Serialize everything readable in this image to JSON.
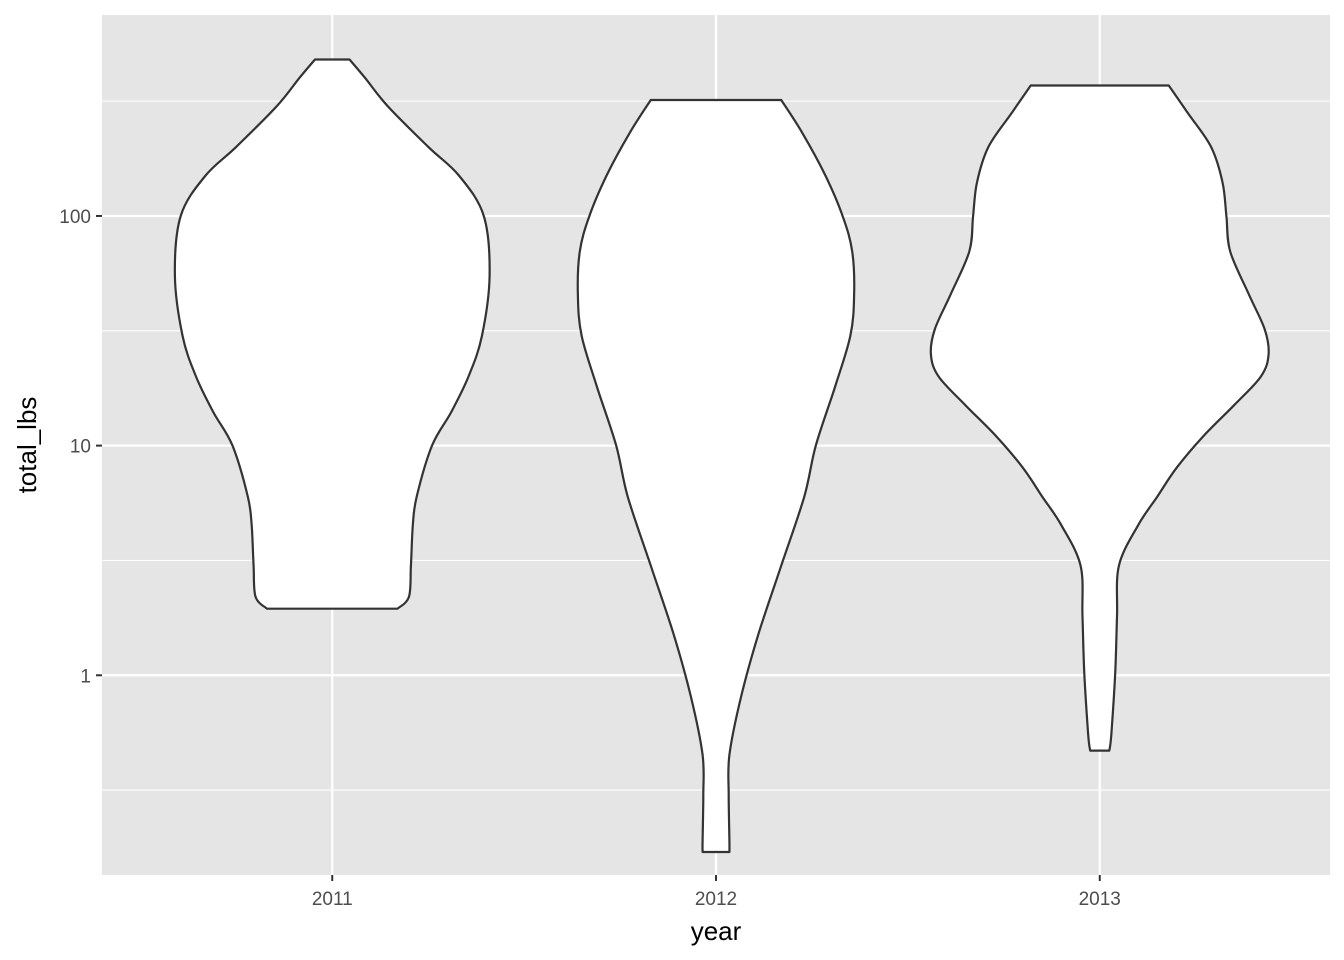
{
  "chart_data": {
    "type": "violin",
    "title": "",
    "xlabel": "year",
    "ylabel": "total_lbs",
    "y_scale": "log10",
    "ylim": [
      0.135,
      750
    ],
    "y_ticks": [
      {
        "value": 1,
        "label": "1"
      },
      {
        "value": 10,
        "label": "10"
      },
      {
        "value": 100,
        "label": "100"
      }
    ],
    "grid": true,
    "legend": "none",
    "colors": {
      "panel_background": "#e5e5e5",
      "grid": "#ffffff",
      "violin_fill": "#ffffff",
      "violin_outline": "#333333",
      "tick_label": "#4d4d4d",
      "axis_title": "#000000"
    },
    "categories": [
      "2011",
      "2012",
      "2013"
    ],
    "series": [
      {
        "category": "2011",
        "min": 1.95,
        "max": 480,
        "density": [
          {
            "y": 1.95,
            "half_width": 0.17
          },
          {
            "y": 2.2,
            "half_width": 0.2
          },
          {
            "y": 3.0,
            "half_width": 0.205
          },
          {
            "y": 4.5,
            "half_width": 0.21
          },
          {
            "y": 6.0,
            "half_width": 0.22
          },
          {
            "y": 10,
            "half_width": 0.26
          },
          {
            "y": 14,
            "half_width": 0.31
          },
          {
            "y": 20,
            "half_width": 0.355
          },
          {
            "y": 30,
            "half_width": 0.39
          },
          {
            "y": 55,
            "half_width": 0.41
          },
          {
            "y": 100,
            "half_width": 0.395
          },
          {
            "y": 150,
            "half_width": 0.33
          },
          {
            "y": 200,
            "half_width": 0.25
          },
          {
            "y": 300,
            "half_width": 0.145
          },
          {
            "y": 400,
            "half_width": 0.085
          },
          {
            "y": 480,
            "half_width": 0.045
          }
        ]
      },
      {
        "category": "2012",
        "min": 0.17,
        "max": 320,
        "density": [
          {
            "y": 0.17,
            "half_width": 0.035
          },
          {
            "y": 0.19,
            "half_width": 0.035
          },
          {
            "y": 0.3,
            "half_width": 0.033
          },
          {
            "y": 0.45,
            "half_width": 0.035
          },
          {
            "y": 0.8,
            "half_width": 0.065
          },
          {
            "y": 1.5,
            "half_width": 0.11
          },
          {
            "y": 3.0,
            "half_width": 0.17
          },
          {
            "y": 6.0,
            "half_width": 0.23
          },
          {
            "y": 10,
            "half_width": 0.26
          },
          {
            "y": 18,
            "half_width": 0.31
          },
          {
            "y": 30,
            "half_width": 0.35
          },
          {
            "y": 45,
            "half_width": 0.36
          },
          {
            "y": 70,
            "half_width": 0.355
          },
          {
            "y": 100,
            "half_width": 0.33
          },
          {
            "y": 150,
            "half_width": 0.285
          },
          {
            "y": 230,
            "half_width": 0.225
          },
          {
            "y": 320,
            "half_width": 0.17
          }
        ]
      },
      {
        "category": "2013",
        "min": 0.47,
        "max": 370,
        "density": [
          {
            "y": 0.47,
            "half_width": 0.025
          },
          {
            "y": 0.55,
            "half_width": 0.03
          },
          {
            "y": 1.0,
            "half_width": 0.04
          },
          {
            "y": 1.8,
            "half_width": 0.045
          },
          {
            "y": 3.0,
            "half_width": 0.05
          },
          {
            "y": 4.5,
            "half_width": 0.1
          },
          {
            "y": 6.0,
            "half_width": 0.15
          },
          {
            "y": 8.0,
            "half_width": 0.2
          },
          {
            "y": 11,
            "half_width": 0.27
          },
          {
            "y": 15,
            "half_width": 0.35
          },
          {
            "y": 20,
            "half_width": 0.42
          },
          {
            "y": 25,
            "half_width": 0.44
          },
          {
            "y": 32,
            "half_width": 0.43
          },
          {
            "y": 45,
            "half_width": 0.39
          },
          {
            "y": 70,
            "half_width": 0.34
          },
          {
            "y": 100,
            "half_width": 0.33
          },
          {
            "y": 140,
            "half_width": 0.32
          },
          {
            "y": 200,
            "half_width": 0.29
          },
          {
            "y": 280,
            "half_width": 0.23
          },
          {
            "y": 370,
            "half_width": 0.18
          }
        ]
      }
    ]
  }
}
